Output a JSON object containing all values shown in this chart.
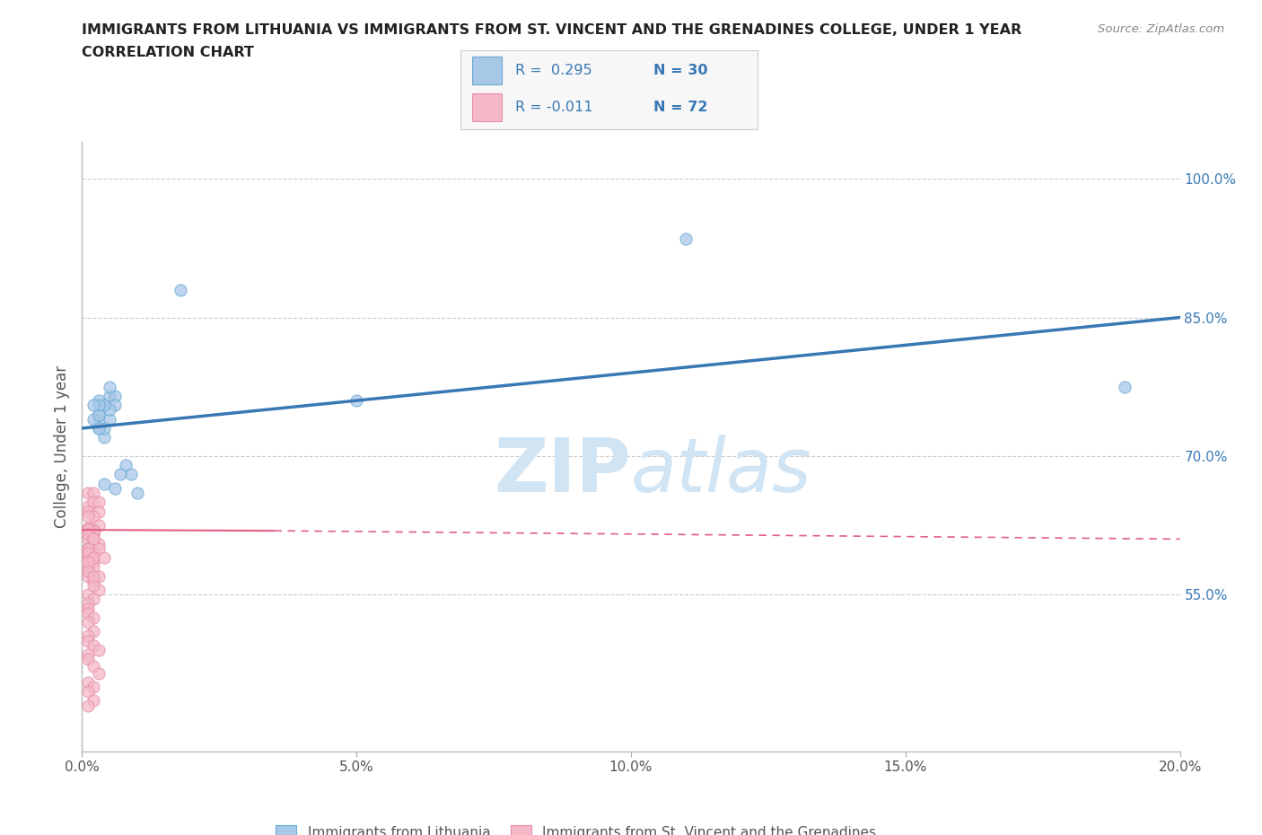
{
  "title_line1": "IMMIGRANTS FROM LITHUANIA VS IMMIGRANTS FROM ST. VINCENT AND THE GRENADINES COLLEGE, UNDER 1 YEAR",
  "title_line2": "CORRELATION CHART",
  "source": "Source: ZipAtlas.com",
  "ylabel": "College, Under 1 year",
  "xmin": 0.0,
  "xmax": 0.2,
  "ymin": 0.38,
  "ymax": 1.04,
  "right_yticks": [
    0.55,
    0.7,
    0.85,
    1.0
  ],
  "right_yticklabels": [
    "55.0%",
    "70.0%",
    "85.0%",
    "100.0%"
  ],
  "xticks": [
    0.0,
    0.05,
    0.1,
    0.15,
    0.2
  ],
  "xticklabels": [
    "0.0%",
    "5.0%",
    "10.0%",
    "15.0%",
    "20.0%"
  ],
  "color_blue": "#a8c8e8",
  "color_blue_edge": "#6aaad4",
  "color_blue_line": "#3878b4",
  "color_pink": "#f4b8c8",
  "color_pink_edge": "#e890a8",
  "color_pink_line": "#e06080",
  "color_text_blue": "#3878b4",
  "watermark_zip": "ZIP",
  "watermark_atlas": "atlas",
  "watermark_color": "#d0e4f4",
  "grid_color": "#cccccc",
  "background": "#ffffff",
  "blue_scatter_x": [
    0.003,
    0.004,
    0.018,
    0.005,
    0.004,
    0.003,
    0.006,
    0.004,
    0.005,
    0.003,
    0.004,
    0.002,
    0.006,
    0.005,
    0.003,
    0.004,
    0.008,
    0.009,
    0.007,
    0.006,
    0.11,
    0.05,
    0.19,
    0.003,
    0.004,
    0.005,
    0.003,
    0.002,
    0.003,
    0.01
  ],
  "blue_scatter_y": [
    0.74,
    0.755,
    0.88,
    0.765,
    0.72,
    0.73,
    0.765,
    0.755,
    0.74,
    0.745,
    0.73,
    0.74,
    0.755,
    0.75,
    0.76,
    0.755,
    0.69,
    0.68,
    0.68,
    0.665,
    0.935,
    0.76,
    0.775,
    0.745,
    0.67,
    0.775,
    0.755,
    0.755,
    0.73,
    0.66
  ],
  "pink_scatter_x": [
    0.001,
    0.001,
    0.002,
    0.002,
    0.003,
    0.003,
    0.001,
    0.002,
    0.003,
    0.001,
    0.001,
    0.002,
    0.001,
    0.001,
    0.002,
    0.001,
    0.002,
    0.001,
    0.001,
    0.001,
    0.002,
    0.003,
    0.001,
    0.002,
    0.001,
    0.001,
    0.001,
    0.002,
    0.001,
    0.002,
    0.001,
    0.001,
    0.002,
    0.003,
    0.001,
    0.001,
    0.002,
    0.003,
    0.001,
    0.002,
    0.001,
    0.002,
    0.001,
    0.001,
    0.002,
    0.002,
    0.001,
    0.001,
    0.002,
    0.001,
    0.002,
    0.003,
    0.001,
    0.002,
    0.001,
    0.002,
    0.001,
    0.002,
    0.003,
    0.004,
    0.002,
    0.003,
    0.002,
    0.001,
    0.001,
    0.002,
    0.001,
    0.001,
    0.002,
    0.001,
    0.001,
    0.002
  ],
  "pink_scatter_y": [
    0.66,
    0.645,
    0.66,
    0.65,
    0.65,
    0.64,
    0.64,
    0.635,
    0.625,
    0.635,
    0.62,
    0.62,
    0.61,
    0.6,
    0.598,
    0.59,
    0.585,
    0.58,
    0.575,
    0.57,
    0.565,
    0.555,
    0.55,
    0.545,
    0.54,
    0.535,
    0.53,
    0.525,
    0.52,
    0.51,
    0.505,
    0.5,
    0.495,
    0.49,
    0.485,
    0.48,
    0.472,
    0.465,
    0.455,
    0.45,
    0.445,
    0.435,
    0.43,
    0.62,
    0.615,
    0.608,
    0.6,
    0.595,
    0.59,
    0.62,
    0.615,
    0.605,
    0.6,
    0.595,
    0.622,
    0.618,
    0.62,
    0.61,
    0.6,
    0.59,
    0.58,
    0.57,
    0.56,
    0.62,
    0.615,
    0.61,
    0.6,
    0.595,
    0.59,
    0.585,
    0.575,
    0.57
  ],
  "blue_trend_x": [
    0.0,
    0.2
  ],
  "blue_trend_y": [
    0.73,
    0.85
  ],
  "pink_trend_x": [
    0.0,
    0.04,
    0.2
  ],
  "pink_trend_y": [
    0.62,
    0.62,
    0.608
  ]
}
